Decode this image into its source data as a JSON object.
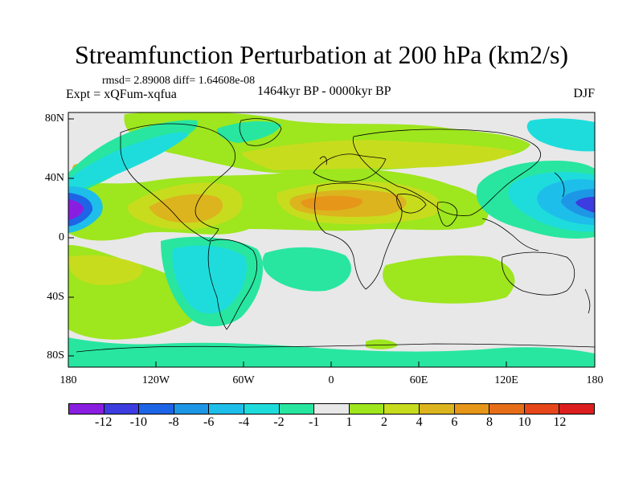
{
  "title": "Streamfunction Perturbation at 200 hPa (km2/s)",
  "stats": "rmsd= 2.89008 diff= 1.64608e-08",
  "expt": "Expt = xQFum-xqfua",
  "period": "1464kyr BP - 0000kyr BP",
  "season": "DJF",
  "lat_labels": [
    "80N",
    "40N",
    "0",
    "40S",
    "80S"
  ],
  "lon_labels": [
    "180",
    "120W",
    "60W",
    "0",
    "60E",
    "120E",
    "180"
  ],
  "colorbar": {
    "labels": [
      "-12",
      "-10",
      "-8",
      "-6",
      "-4",
      "-2",
      "-1",
      "1",
      "2",
      "4",
      "6",
      "8",
      "10",
      "12"
    ],
    "colors": [
      "#8a1ee0",
      "#3c3ce0",
      "#1e64e6",
      "#1e96e6",
      "#1ebeea",
      "#1edcdc",
      "#28e6a0",
      "#e8e8e8",
      "#9ee61e",
      "#c8dc1e",
      "#dcb41e",
      "#e69619",
      "#e66e19",
      "#e64619",
      "#dc1e1e"
    ]
  },
  "colors": {
    "background": "#e8e8e8",
    "coast": "#000000"
  }
}
